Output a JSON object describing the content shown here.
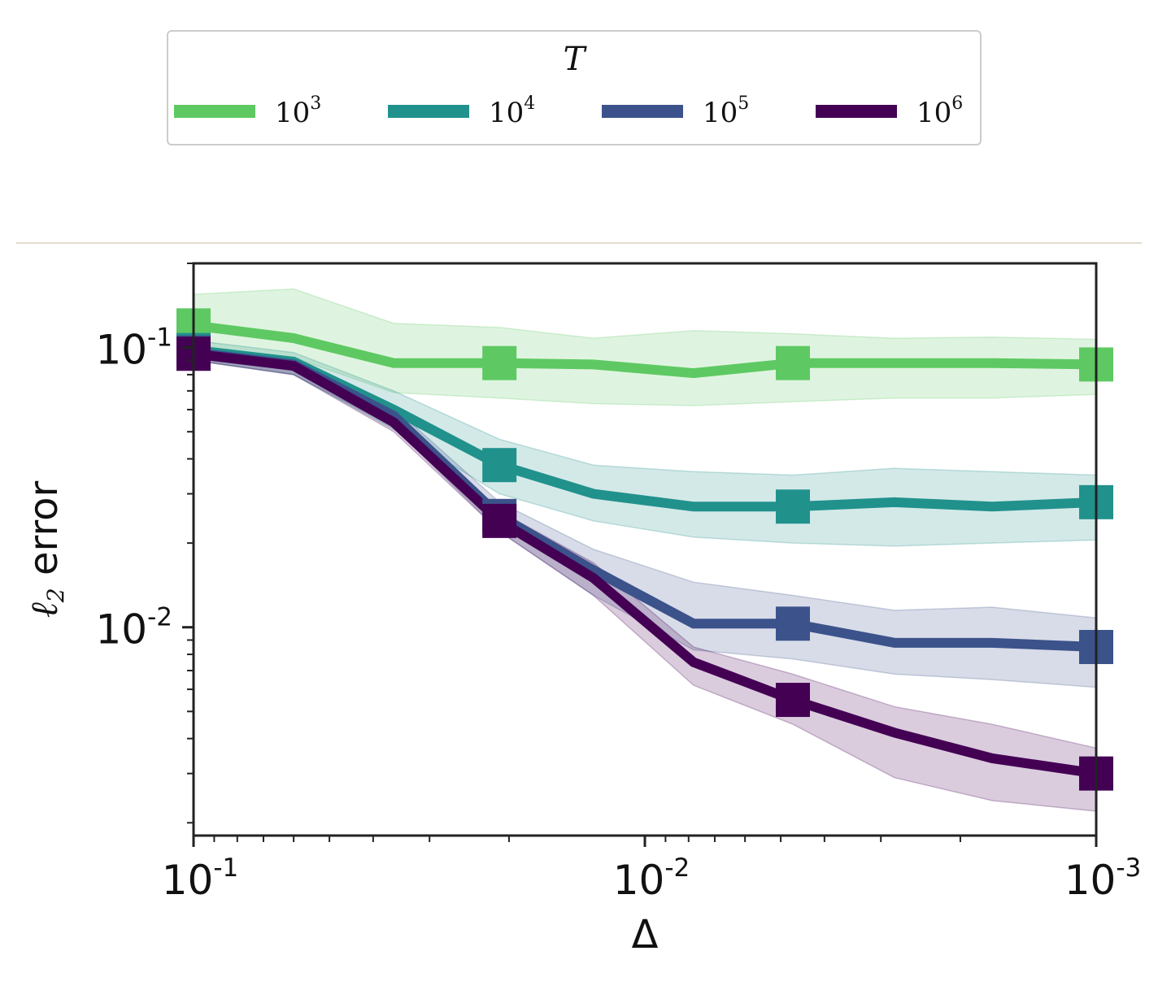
{
  "chart_data": {
    "type": "line",
    "xscale": "log",
    "yscale": "log",
    "x_reversed": true,
    "xlim": [
      0.1,
      0.001
    ],
    "ylim": [
      0.0018,
      0.2
    ],
    "xlabel": "Δ",
    "ylabel_prefix": "ℓ",
    "ylabel_sub": "2",
    "ylabel_rest": " error",
    "legend": {
      "title": "T",
      "placement": "top, above plot",
      "ncol": 4
    },
    "x_ticks": [
      {
        "value": 0.1,
        "base": "10",
        "exp": "-1"
      },
      {
        "value": 0.01,
        "base": "10",
        "exp": "-2"
      },
      {
        "value": 0.001,
        "base": "10",
        "exp": "-3"
      }
    ],
    "y_ticks": [
      {
        "value": 0.1,
        "base": "10",
        "exp": "-1"
      },
      {
        "value": 0.01,
        "base": "10",
        "exp": "-2"
      }
    ],
    "x": [
      0.1,
      0.06,
      0.036,
      0.021,
      0.013,
      0.0078,
      0.0047,
      0.0028,
      0.0017,
      0.001
    ],
    "marker_indices": [
      0,
      3,
      6,
      9
    ],
    "series": [
      {
        "name_base": "10",
        "name_exp": "3",
        "color": "#5ec962",
        "values": [
          0.12,
          0.108,
          0.088,
          0.088,
          0.087,
          0.081,
          0.088,
          0.088,
          0.088,
          0.087
        ],
        "lower": [
          0.102,
          0.092,
          0.069,
          0.066,
          0.063,
          0.062,
          0.064,
          0.066,
          0.066,
          0.068
        ],
        "upper": [
          0.155,
          0.162,
          0.122,
          0.118,
          0.108,
          0.115,
          0.112,
          0.108,
          0.109,
          0.107
        ]
      },
      {
        "name_base": "10",
        "name_exp": "4",
        "color": "#21918c",
        "values": [
          0.098,
          0.089,
          0.06,
          0.038,
          0.03,
          0.027,
          0.027,
          0.028,
          0.027,
          0.028
        ],
        "lower": [
          0.09,
          0.08,
          0.051,
          0.03,
          0.024,
          0.021,
          0.02,
          0.0195,
          0.02,
          0.0205
        ],
        "upper": [
          0.106,
          0.096,
          0.07,
          0.047,
          0.038,
          0.036,
          0.035,
          0.037,
          0.036,
          0.035
        ]
      },
      {
        "name_base": "10",
        "name_exp": "5",
        "color": "#3b528b",
        "values": [
          0.096,
          0.087,
          0.057,
          0.025,
          0.016,
          0.0103,
          0.0103,
          0.0088,
          0.0088,
          0.0085
        ],
        "lower": [
          0.09,
          0.08,
          0.052,
          0.022,
          0.013,
          0.0083,
          0.0077,
          0.0068,
          0.0065,
          0.0061
        ],
        "upper": [
          0.101,
          0.092,
          0.061,
          0.028,
          0.019,
          0.0145,
          0.013,
          0.0115,
          0.0118,
          0.0108
        ]
      },
      {
        "name_base": "10",
        "name_exp": "6",
        "color": "#440154",
        "values": [
          0.095,
          0.086,
          0.054,
          0.024,
          0.015,
          0.0075,
          0.0055,
          0.0042,
          0.0034,
          0.003
        ],
        "lower": [
          0.09,
          0.08,
          0.05,
          0.022,
          0.013,
          0.0062,
          0.0045,
          0.0029,
          0.0024,
          0.0022
        ],
        "upper": [
          0.1,
          0.091,
          0.058,
          0.026,
          0.017,
          0.0085,
          0.0068,
          0.0052,
          0.0045,
          0.0037
        ]
      }
    ]
  }
}
